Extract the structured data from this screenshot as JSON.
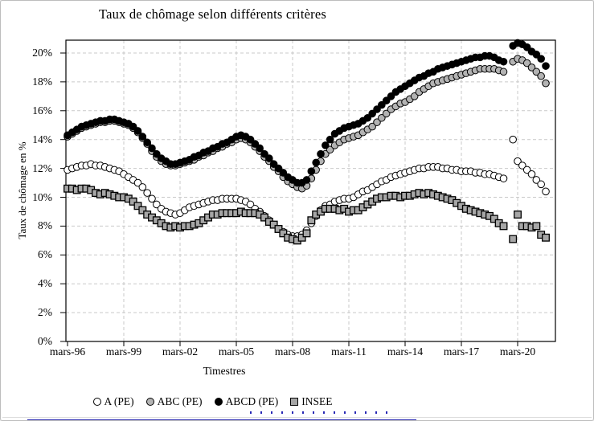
{
  "chart": {
    "title": "Taux de chômage selon différents critères",
    "y_axis": {
      "title": "Taux de chômage en %",
      "tick_labels": [
        "0%",
        "2%",
        "4%",
        "6%",
        "8%",
        "10%",
        "12%",
        "14%",
        "16%",
        "18%",
        "20%"
      ]
    },
    "x_axis": {
      "title": "Timestres",
      "tick_labels": [
        "mars-96",
        "mars-99",
        "mars-02",
        "mars-05",
        "mars-08",
        "mars-11",
        "mars-14",
        "mars-17",
        "mars-20"
      ]
    },
    "legend": [
      {
        "label": "A (PE)",
        "marker": "circle",
        "fill": "#ffffff"
      },
      {
        "label": "ABC (PE)",
        "marker": "circle",
        "fill": "#b3b3b3"
      },
      {
        "label": "ABCD (PE)",
        "marker": "circle",
        "fill": "#000000"
      },
      {
        "label": "INSEE",
        "marker": "square",
        "fill": "#a6a6a6"
      }
    ]
  },
  "chart_data": {
    "type": "scatter",
    "title": "Taux de chômage selon différents critères",
    "xlabel": "Timestres",
    "ylabel": "Taux de chômage en %",
    "x_start": "mars-96",
    "frequency": "quarterly",
    "x_tick_labels": [
      "mars-96",
      "mars-99",
      "mars-02",
      "mars-05",
      "mars-08",
      "mars-11",
      "mars-14",
      "mars-17",
      "mars-20"
    ],
    "ylim": [
      0,
      20.9
    ],
    "y_step": 2,
    "grid": "dashed",
    "legend_position": "bottom",
    "series": [
      {
        "name": "A (PE)",
        "marker": "circle",
        "fill": "#ffffff",
        "values": [
          11.9,
          12.0,
          12.1,
          12.2,
          12.2,
          12.3,
          12.2,
          12.2,
          12.1,
          12.0,
          11.9,
          11.8,
          11.6,
          11.4,
          11.2,
          11.0,
          10.7,
          10.3,
          9.9,
          9.5,
          9.2,
          9.0,
          8.9,
          8.8,
          8.9,
          9.1,
          9.3,
          9.4,
          9.5,
          9.6,
          9.7,
          9.8,
          9.8,
          9.9,
          9.9,
          9.9,
          9.9,
          9.8,
          9.7,
          9.5,
          9.2,
          9.0,
          8.7,
          8.4,
          8.1,
          7.8,
          7.6,
          7.4,
          7.3,
          7.3,
          7.4,
          7.7,
          8.2,
          8.7,
          9.1,
          9.4,
          9.5,
          9.7,
          9.8,
          9.9,
          9.9,
          10.0,
          10.2,
          10.4,
          10.5,
          10.7,
          10.9,
          11.1,
          11.2,
          11.4,
          11.5,
          11.6,
          11.7,
          11.8,
          11.9,
          12.0,
          12.0,
          12.1,
          12.1,
          12.1,
          12.0,
          12.0,
          11.9,
          11.9,
          11.8,
          11.8,
          11.8,
          11.7,
          11.7,
          11.6,
          11.6,
          11.5,
          11.4,
          11.3,
          null,
          14.0,
          12.5,
          12.2,
          11.9,
          11.6,
          11.2,
          10.9,
          10.4
        ]
      },
      {
        "name": "ABC (PE)",
        "marker": "circle",
        "fill": "#b3b3b3",
        "values": [
          14.2,
          14.4,
          14.6,
          14.8,
          14.9,
          15.0,
          15.1,
          15.2,
          15.2,
          15.3,
          15.3,
          15.2,
          15.1,
          15.0,
          14.8,
          14.5,
          14.1,
          13.7,
          13.2,
          12.8,
          12.5,
          12.3,
          12.2,
          12.2,
          12.3,
          12.4,
          12.5,
          12.6,
          12.8,
          12.9,
          13.1,
          13.2,
          13.4,
          13.5,
          13.7,
          13.8,
          14.0,
          14.1,
          14.0,
          13.8,
          13.5,
          13.2,
          12.8,
          12.5,
          12.1,
          11.8,
          11.4,
          11.1,
          10.9,
          10.7,
          10.6,
          10.8,
          11.3,
          11.9,
          12.5,
          13.0,
          13.3,
          13.6,
          13.8,
          14.0,
          14.1,
          14.2,
          14.3,
          14.5,
          14.7,
          14.9,
          15.2,
          15.5,
          15.8,
          16.1,
          16.3,
          16.5,
          16.6,
          16.8,
          17.0,
          17.3,
          17.5,
          17.7,
          17.9,
          18.0,
          18.1,
          18.2,
          18.3,
          18.4,
          18.5,
          18.6,
          18.7,
          18.8,
          18.9,
          18.9,
          18.9,
          18.9,
          18.8,
          18.7,
          null,
          19.4,
          19.6,
          19.5,
          19.3,
          19.0,
          18.7,
          18.4,
          17.9
        ]
      },
      {
        "name": "ABCD (PE)",
        "marker": "circle",
        "fill": "#000000",
        "values": [
          14.3,
          14.5,
          14.7,
          14.9,
          15.0,
          15.1,
          15.2,
          15.3,
          15.3,
          15.4,
          15.4,
          15.3,
          15.2,
          15.1,
          14.9,
          14.6,
          14.2,
          13.8,
          13.4,
          13.0,
          12.7,
          12.5,
          12.3,
          12.3,
          12.4,
          12.5,
          12.6,
          12.8,
          12.9,
          13.1,
          13.2,
          13.4,
          13.5,
          13.7,
          13.8,
          14.0,
          14.2,
          14.3,
          14.2,
          14.0,
          13.7,
          13.4,
          13.0,
          12.7,
          12.3,
          12.0,
          11.7,
          11.4,
          11.2,
          11.0,
          11.0,
          11.2,
          11.8,
          12.4,
          13.0,
          13.6,
          14.0,
          14.4,
          14.6,
          14.8,
          14.9,
          15.0,
          15.1,
          15.3,
          15.5,
          15.8,
          16.1,
          16.4,
          16.7,
          17.0,
          17.3,
          17.5,
          17.7,
          17.9,
          18.1,
          18.3,
          18.4,
          18.6,
          18.7,
          18.9,
          19.0,
          19.1,
          19.2,
          19.3,
          19.4,
          19.5,
          19.6,
          19.7,
          19.7,
          19.8,
          19.8,
          19.7,
          19.5,
          19.4,
          null,
          20.5,
          20.7,
          20.6,
          20.4,
          20.1,
          19.9,
          19.6,
          19.1
        ]
      },
      {
        "name": "INSEE",
        "marker": "square",
        "fill": "#a6a6a6",
        "values": [
          10.6,
          10.6,
          10.5,
          10.6,
          10.6,
          10.5,
          10.3,
          10.2,
          10.3,
          10.2,
          10.1,
          10.0,
          10.0,
          9.9,
          9.7,
          9.4,
          9.1,
          8.8,
          8.6,
          8.4,
          8.2,
          8.0,
          7.9,
          8.0,
          7.9,
          8.0,
          8.0,
          8.1,
          8.2,
          8.4,
          8.6,
          8.8,
          8.8,
          8.9,
          8.9,
          8.9,
          8.9,
          9.0,
          8.9,
          8.9,
          8.9,
          8.8,
          8.6,
          8.3,
          8.1,
          7.8,
          7.5,
          7.2,
          7.1,
          7.0,
          7.2,
          7.5,
          8.4,
          8.8,
          9.0,
          9.2,
          9.2,
          9.2,
          9.1,
          9.2,
          9.0,
          9.1,
          9.1,
          9.3,
          9.5,
          9.7,
          9.9,
          10.0,
          10.0,
          10.1,
          10.1,
          10.0,
          10.1,
          10.1,
          10.2,
          10.3,
          10.2,
          10.3,
          10.2,
          10.1,
          10.0,
          9.9,
          9.8,
          9.6,
          9.4,
          9.2,
          9.1,
          9.0,
          8.9,
          8.8,
          8.7,
          8.5,
          8.2,
          8.0,
          null,
          7.1,
          8.8,
          8.0,
          8.0,
          7.9,
          8.0,
          7.4,
          7.2
        ]
      }
    ]
  },
  "colors": {
    "gridline": "#c9c9c9",
    "axis": "#000000",
    "bottom_accent_blue": "#2a2ab0"
  }
}
